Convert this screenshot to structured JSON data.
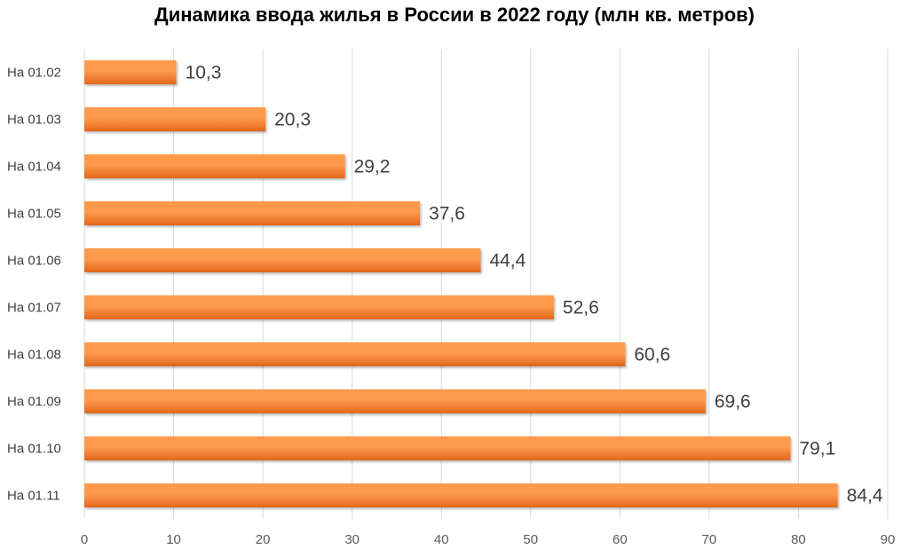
{
  "colors": {
    "bar_light": "#ff9a4c",
    "bar_dark": "#e2661b",
    "grid": "#d9d9d9",
    "label": "#404040",
    "axis_tick": "#595959"
  },
  "chart_data": {
    "type": "bar",
    "orientation": "horizontal",
    "title": "Динамика ввода жилья в России в 2022 году (млн кв. метров)",
    "xlabel": "",
    "ylabel": "",
    "categories": [
      "На 01.02",
      "На 01.03",
      "На 01.04",
      "На 01.05",
      "На 01.06",
      "На 01.07",
      "На 01.08",
      "На 01.09",
      "На 01.10",
      "На 01.11"
    ],
    "values": [
      10.3,
      20.3,
      29.2,
      37.6,
      44.4,
      52.6,
      60.6,
      69.6,
      79.1,
      84.4
    ],
    "data_labels": [
      "10,3",
      "20,3",
      "29,2",
      "37,6",
      "44,4",
      "52,6",
      "60,6",
      "69,6",
      "79,1",
      "84,4"
    ],
    "xlim": [
      0,
      90
    ],
    "x_ticks": [
      0,
      10,
      20,
      30,
      40,
      50,
      60,
      70,
      80,
      90
    ],
    "grid": true,
    "legend": "none"
  }
}
